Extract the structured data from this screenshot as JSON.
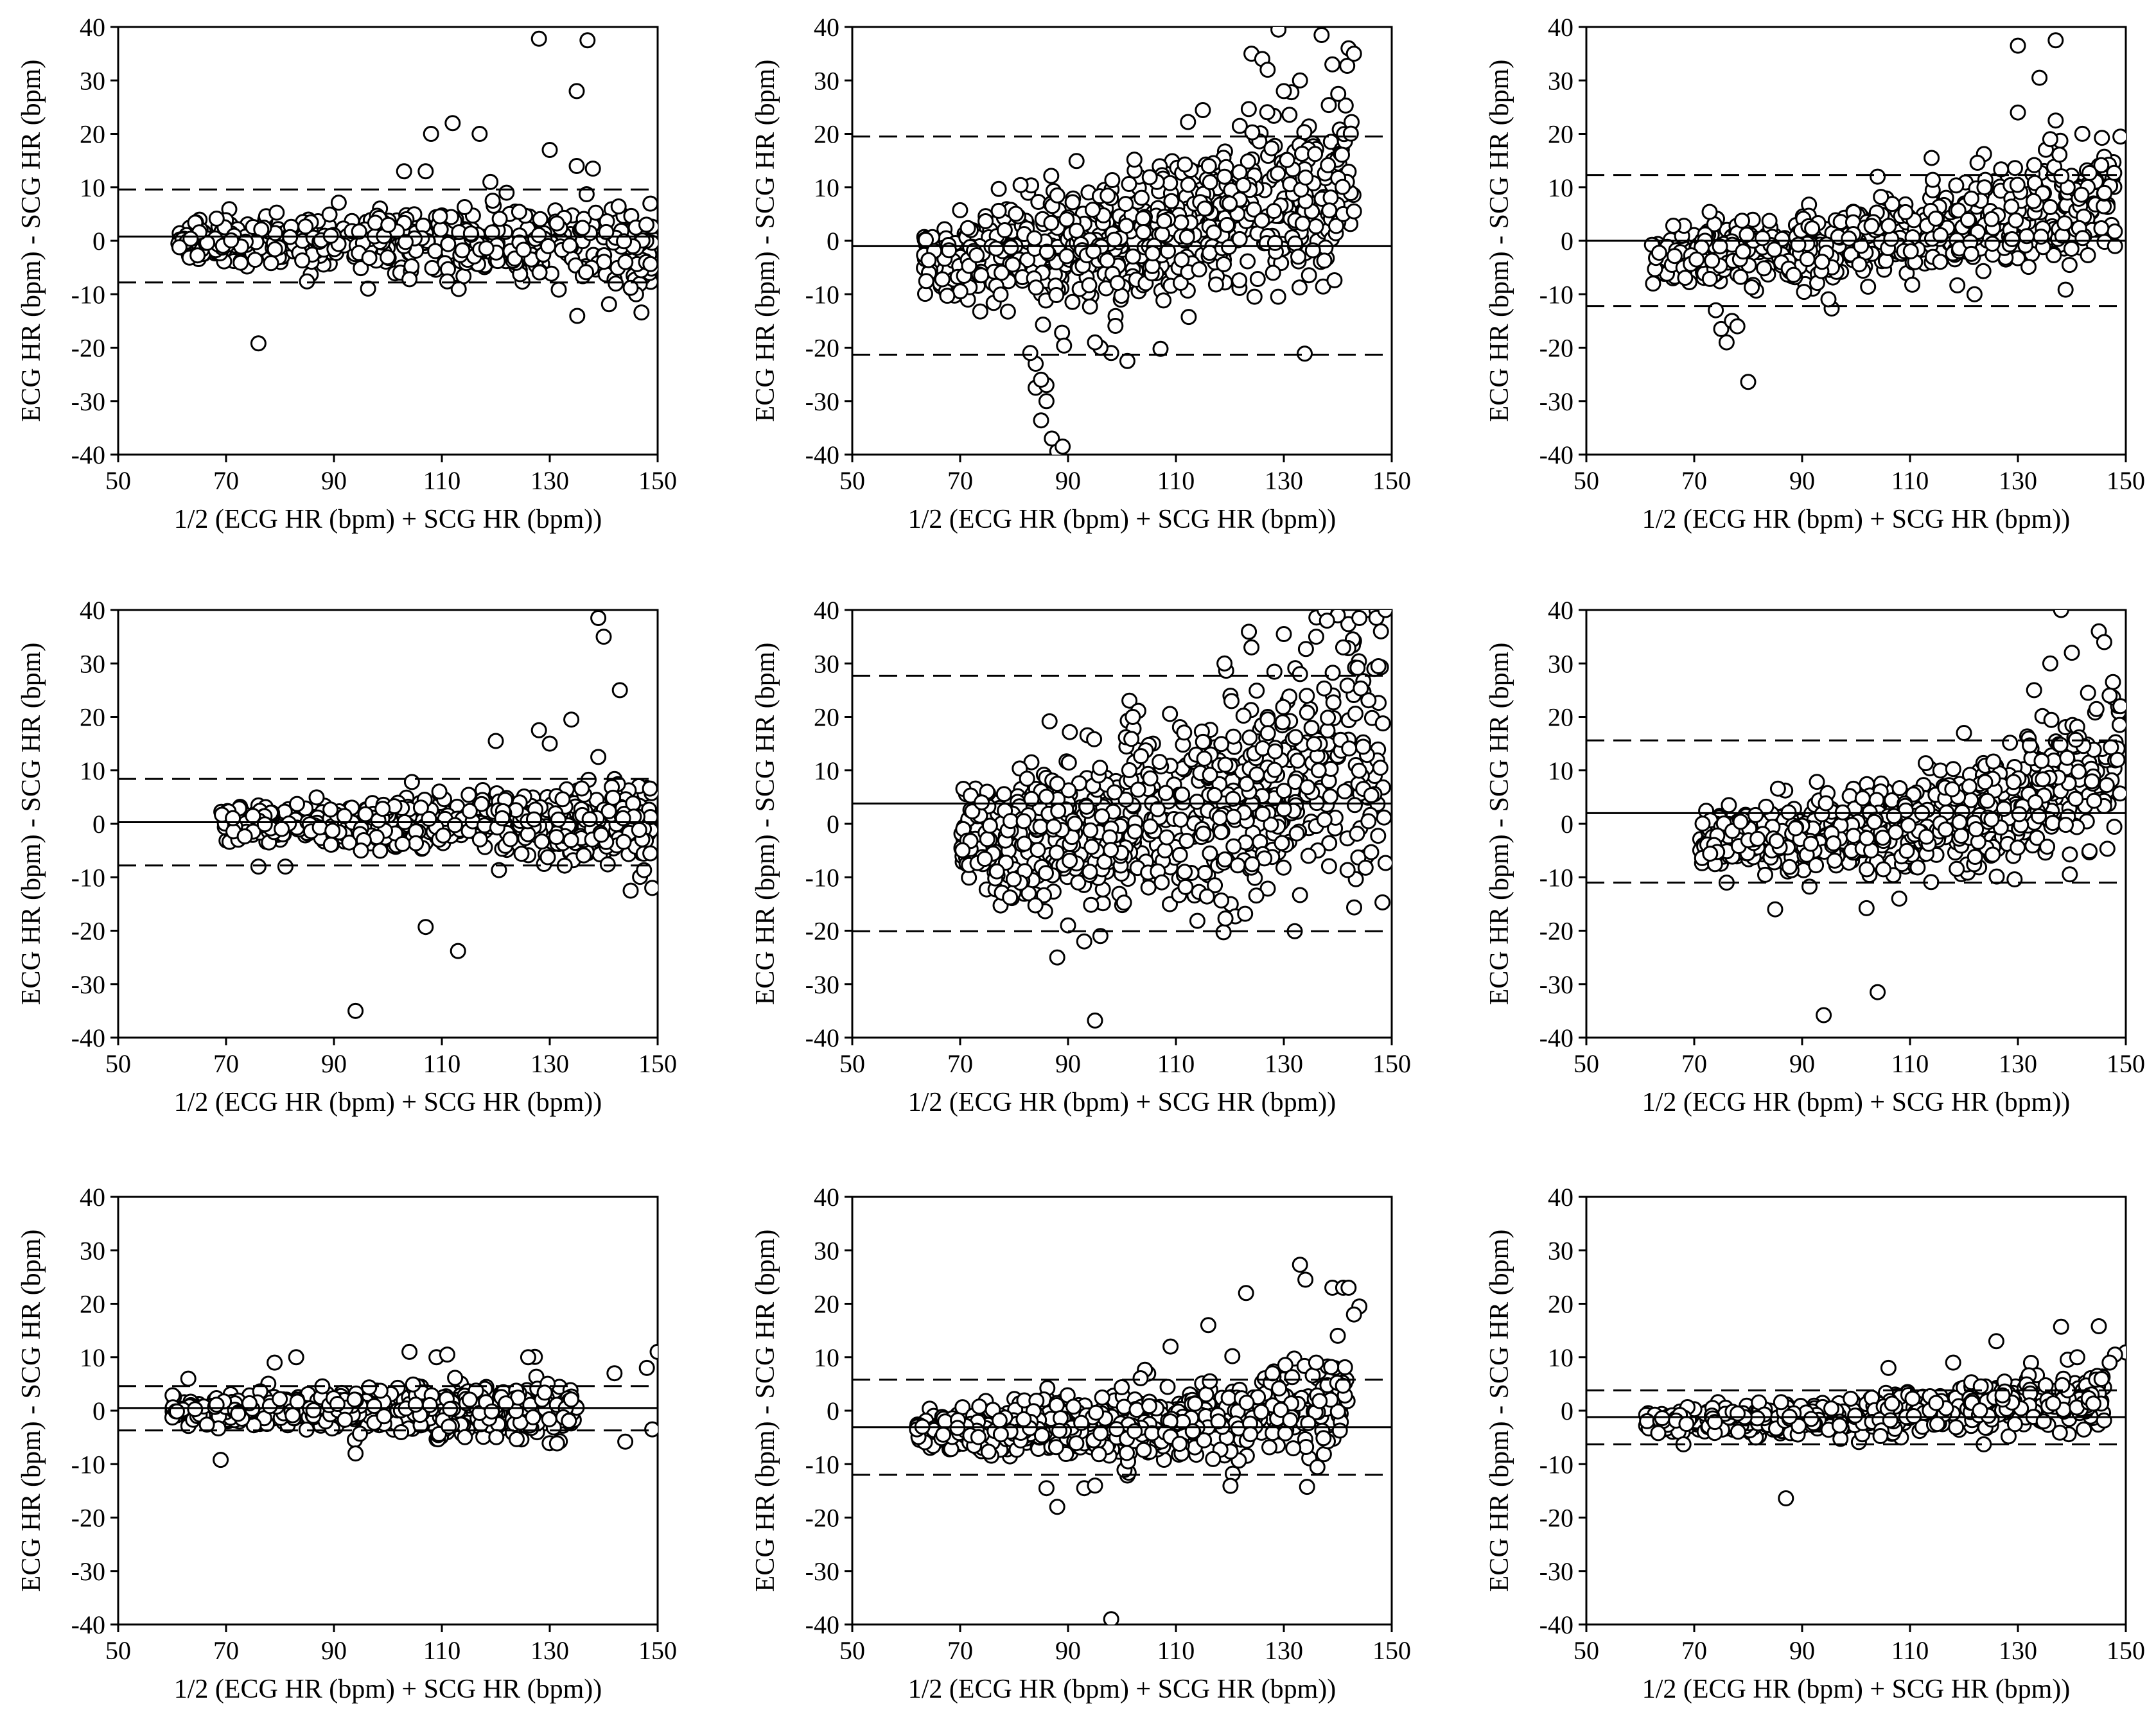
{
  "figure": {
    "columns": 3,
    "rows": 3
  },
  "colors": {
    "ink": "#000000",
    "marker_fill": "#ffffff",
    "background": "#ffffff"
  },
  "chart_data": [
    {
      "type": "scatter",
      "panel": "row1-col1",
      "xlabel": "1/2 (ECG HR (bpm) + SCG HR (bpm))",
      "ylabel": "ECG HR (bpm) - SCG HR (bpm)",
      "xlim": [
        50,
        150
      ],
      "ylim": [
        -40,
        40
      ],
      "xticks": [
        50,
        70,
        90,
        110,
        130,
        150
      ],
      "yticks": [
        -40,
        -30,
        -20,
        -10,
        0,
        10,
        20,
        30,
        40
      ],
      "grid": false,
      "legend": "none",
      "mean_line": 0.8,
      "upper_loa": 9.6,
      "lower_loa": -7.8,
      "cloud": {
        "n": 520,
        "x": [
          61,
          149
        ],
        "trend_start": 0,
        "trend_end": -1,
        "spread": 2.5
      },
      "points": [
        [
          76,
          -19.2
        ],
        [
          128,
          37.8
        ],
        [
          137,
          37.5
        ],
        [
          135,
          28
        ],
        [
          130,
          17
        ],
        [
          112,
          22
        ],
        [
          117,
          20
        ],
        [
          108,
          20
        ],
        [
          103,
          13
        ],
        [
          107,
          13
        ],
        [
          138,
          13.5
        ],
        [
          135,
          14
        ],
        [
          147,
          -13.4
        ],
        [
          146,
          -10
        ],
        [
          85,
          -7.6
        ],
        [
          111,
          -7.6
        ],
        [
          104,
          -7.2
        ],
        [
          145,
          -8.8
        ],
        [
          122,
          9
        ],
        [
          119,
          11
        ]
      ]
    },
    {
      "type": "scatter",
      "panel": "row1-col2",
      "xlabel": "1/2 (ECG HR (bpm) + SCG HR (bpm))",
      "ylabel": "ECG HR (bpm) - SCG HR (bpm)",
      "xlim": [
        50,
        150
      ],
      "ylim": [
        -40,
        40
      ],
      "xticks": [
        50,
        70,
        90,
        110,
        130,
        150
      ],
      "yticks": [
        -40,
        -30,
        -20,
        -10,
        0,
        10,
        20,
        30,
        40
      ],
      "grid": false,
      "legend": "none",
      "mean_line": -1.0,
      "upper_loa": 19.5,
      "lower_loa": -21.3,
      "cloud": {
        "n": 700,
        "x": [
          63,
          143
        ],
        "trend_start": -3,
        "trend_end": 12,
        "spread": 6
      },
      "points": [
        [
          88,
          -39.4
        ],
        [
          87,
          -37
        ],
        [
          89,
          -38.5
        ],
        [
          85,
          -33.6
        ],
        [
          86,
          -30
        ],
        [
          84,
          -27.5
        ],
        [
          86,
          -27
        ],
        [
          85,
          -26
        ],
        [
          84,
          -23
        ],
        [
          83,
          -21
        ],
        [
          129,
          39.5
        ],
        [
          137,
          38.5
        ],
        [
          142,
          36
        ],
        [
          143,
          35
        ],
        [
          124,
          35
        ],
        [
          126,
          34
        ],
        [
          139,
          33
        ],
        [
          127,
          32
        ],
        [
          133,
          30
        ],
        [
          130,
          28
        ],
        [
          141,
          5
        ],
        [
          143,
          5.5
        ],
        [
          128,
          -6
        ],
        [
          101,
          -22.5
        ],
        [
          98,
          -21
        ],
        [
          96,
          -20
        ],
        [
          95,
          -19
        ]
      ]
    },
    {
      "type": "scatter",
      "panel": "row1-col3",
      "xlabel": "1/2 (ECG HR (bpm) + SCG HR (bpm))",
      "ylabel": "ECG HR (bpm) - SCG HR (bpm)",
      "xlim": [
        50,
        150
      ],
      "ylim": [
        -40,
        40
      ],
      "xticks": [
        50,
        70,
        90,
        110,
        130,
        150
      ],
      "yticks": [
        -40,
        -30,
        -20,
        -10,
        0,
        10,
        20,
        30,
        40
      ],
      "grid": false,
      "legend": "none",
      "mean_line": 0.0,
      "upper_loa": 12.3,
      "lower_loa": -12.2,
      "cloud": {
        "n": 650,
        "x": [
          62,
          148
        ],
        "trend_start": -2.5,
        "trend_end": 9,
        "spread": 3.5
      },
      "points": [
        [
          80,
          -26.4
        ],
        [
          76,
          -19
        ],
        [
          75,
          -16.5
        ],
        [
          77,
          -15
        ],
        [
          74,
          -13
        ],
        [
          78,
          -16
        ],
        [
          130,
          36.5
        ],
        [
          137,
          37.5
        ],
        [
          134,
          30.5
        ],
        [
          130,
          24
        ],
        [
          137,
          22.5
        ],
        [
          136,
          19
        ],
        [
          149,
          19.5
        ],
        [
          114,
          15.5
        ],
        [
          104,
          12
        ],
        [
          148,
          -1
        ],
        [
          142,
          0.5
        ]
      ]
    },
    {
      "type": "scatter",
      "panel": "row2-col1",
      "xlabel": "1/2 (ECG HR (bpm) + SCG HR (bpm))",
      "ylabel": "ECG HR (bpm) - SCG HR (bpm)",
      "xlim": [
        50,
        150
      ],
      "ylim": [
        -40,
        40
      ],
      "xticks": [
        50,
        70,
        90,
        110,
        130,
        150
      ],
      "yticks": [
        -40,
        -30,
        -20,
        -10,
        0,
        10,
        20,
        30,
        40
      ],
      "grid": false,
      "legend": "none",
      "mean_line": 0.3,
      "upper_loa": 8.4,
      "lower_loa": -7.8,
      "cloud": {
        "n": 600,
        "x": [
          69,
          149
        ],
        "trend_start": 0,
        "trend_end": 0,
        "spread": 2.2
      },
      "points": [
        [
          94,
          -35
        ],
        [
          113,
          -23.8
        ],
        [
          107,
          -19.3
        ],
        [
          139,
          38.5
        ],
        [
          140,
          35
        ],
        [
          143,
          25
        ],
        [
          134,
          19.5
        ],
        [
          128,
          17.5
        ],
        [
          130,
          15
        ],
        [
          120,
          15.5
        ],
        [
          139,
          12.5
        ],
        [
          145,
          -12.5
        ],
        [
          149,
          -12
        ],
        [
          76,
          -8
        ],
        [
          81,
          -8
        ],
        [
          95,
          -5
        ]
      ]
    },
    {
      "type": "scatter",
      "panel": "row2-col2",
      "xlabel": "1/2 (ECG HR (bpm) + SCG HR (bpm))",
      "ylabel": "ECG HR (bpm) - SCG HR (bpm)",
      "xlim": [
        50,
        150
      ],
      "ylim": [
        -40,
        40
      ],
      "xticks": [
        50,
        70,
        90,
        110,
        130,
        150
      ],
      "yticks": [
        -40,
        -30,
        -20,
        -10,
        0,
        10,
        20,
        30,
        40
      ],
      "grid": false,
      "legend": "none",
      "mean_line": 3.8,
      "upper_loa": 27.7,
      "lower_loa": -20.1,
      "cloud": {
        "n": 750,
        "x": [
          70,
          149
        ],
        "trend_start": -3,
        "trend_end": 16,
        "spread": 8
      },
      "points": [
        [
          95,
          -36.8
        ],
        [
          88,
          -25
        ],
        [
          93,
          -22
        ],
        [
          96,
          -21
        ],
        [
          90,
          -19
        ],
        [
          140,
          39
        ],
        [
          144,
          38.5
        ],
        [
          138,
          38
        ],
        [
          148,
          36
        ],
        [
          136,
          35
        ],
        [
          130,
          35.5
        ],
        [
          141,
          33
        ],
        [
          124,
          33
        ],
        [
          119,
          30
        ],
        [
          133,
          28
        ],
        [
          102,
          20
        ],
        [
          88,
          7.5
        ],
        [
          75,
          6
        ],
        [
          74,
          4
        ]
      ]
    },
    {
      "type": "scatter",
      "panel": "row2-col3",
      "xlabel": "1/2 (ECG HR (bpm) + SCG HR (bpm))",
      "ylabel": "ECG HR (bpm) - SCG HR (bpm)",
      "xlim": [
        50,
        150
      ],
      "ylim": [
        -40,
        40
      ],
      "xticks": [
        50,
        70,
        90,
        110,
        130,
        150
      ],
      "yticks": [
        -40,
        -30,
        -20,
        -10,
        0,
        10,
        20,
        30,
        40
      ],
      "grid": false,
      "legend": "none",
      "mean_line": 2.0,
      "upper_loa": 15.6,
      "lower_loa": -11.0,
      "cloud": {
        "n": 700,
        "x": [
          71,
          149
        ],
        "trend_start": -3,
        "trend_end": 11,
        "spread": 4
      },
      "points": [
        [
          94,
          -35.8
        ],
        [
          104,
          -31.5
        ],
        [
          85,
          -16
        ],
        [
          108,
          -14
        ],
        [
          76,
          -11
        ],
        [
          138,
          40
        ],
        [
          145,
          36
        ],
        [
          146,
          34
        ],
        [
          140,
          32
        ],
        [
          136,
          30
        ],
        [
          133,
          25
        ],
        [
          143,
          24.5
        ],
        [
          147,
          24
        ],
        [
          149,
          22
        ],
        [
          120,
          17
        ]
      ]
    },
    {
      "type": "scatter",
      "panel": "row3-col1",
      "xlabel": "1/2 (ECG HR (bpm) + SCG HR (bpm))",
      "ylabel": "ECG HR (bpm) - SCG HR (bpm)",
      "xlim": [
        50,
        150
      ],
      "ylim": [
        -40,
        40
      ],
      "xticks": [
        50,
        70,
        90,
        110,
        130,
        150
      ],
      "yticks": [
        -40,
        -30,
        -20,
        -10,
        0,
        10,
        20,
        30,
        40
      ],
      "grid": false,
      "legend": "none",
      "mean_line": 0.5,
      "upper_loa": 4.6,
      "lower_loa": -3.7,
      "cloud": {
        "n": 600,
        "x": [
          60,
          135
        ],
        "trend_start": 0,
        "trend_end": 0,
        "spread": 1.6
      },
      "points": [
        [
          69,
          -9.2
        ],
        [
          94,
          -8
        ],
        [
          144,
          -5.8
        ],
        [
          149,
          -3.5
        ],
        [
          150,
          11
        ],
        [
          104,
          11
        ],
        [
          148,
          8
        ],
        [
          83,
          10
        ],
        [
          79,
          9
        ],
        [
          126,
          10
        ],
        [
          109,
          10
        ],
        [
          111,
          10.5
        ],
        [
          142,
          7
        ],
        [
          63,
          6
        ]
      ]
    },
    {
      "type": "scatter",
      "panel": "row3-col2",
      "xlabel": "1/2 (ECG HR (bpm) + SCG HR (bpm))",
      "ylabel": "ECG HR (bpm) - SCG HR (bpm)",
      "xlim": [
        50,
        150
      ],
      "ylim": [
        -40,
        40
      ],
      "xticks": [
        50,
        70,
        90,
        110,
        130,
        150
      ],
      "yticks": [
        -40,
        -30,
        -20,
        -10,
        0,
        10,
        20,
        30,
        40
      ],
      "grid": false,
      "legend": "none",
      "mean_line": -3.1,
      "upper_loa": 5.8,
      "lower_loa": -12.0,
      "cloud": {
        "n": 680,
        "x": [
          62,
          142
        ],
        "trend_start": -3.5,
        "trend_end": 1,
        "spread": 2.8
      },
      "points": [
        [
          98,
          -39
        ],
        [
          88,
          -18
        ],
        [
          86,
          -14.5
        ],
        [
          93,
          -14.5
        ],
        [
          95,
          -14
        ],
        [
          133,
          27.3
        ],
        [
          134,
          24.5
        ],
        [
          139,
          23
        ],
        [
          141,
          23
        ],
        [
          142,
          23
        ],
        [
          144,
          19.5
        ],
        [
          143,
          18
        ],
        [
          140,
          14
        ],
        [
          123,
          22
        ],
        [
          116,
          16
        ],
        [
          109,
          12
        ],
        [
          136,
          9
        ],
        [
          62,
          -3
        ],
        [
          62,
          -3.5
        ],
        [
          63,
          -3
        ]
      ]
    },
    {
      "type": "scatter",
      "panel": "row3-col3",
      "xlabel": "1/2 (ECG HR (bpm) + SCG HR (bpm))",
      "ylabel": "ECG HR (bpm) - SCG HR (bpm)",
      "xlim": [
        50,
        150
      ],
      "ylim": [
        -40,
        40
      ],
      "xticks": [
        50,
        70,
        90,
        110,
        130,
        150
      ],
      "yticks": [
        -40,
        -30,
        -20,
        -10,
        0,
        10,
        20,
        30,
        40
      ],
      "grid": false,
      "legend": "none",
      "mean_line": -1.2,
      "upper_loa": 3.8,
      "lower_loa": -6.3,
      "cloud": {
        "n": 650,
        "x": [
          61,
          146
        ],
        "trend_start": -2,
        "trend_end": 3,
        "spread": 1.6
      },
      "points": [
        [
          87,
          -16.4
        ],
        [
          68,
          -6.3
        ],
        [
          138,
          15.7
        ],
        [
          145,
          15.8
        ],
        [
          150,
          10.9
        ],
        [
          148,
          10.5
        ],
        [
          147,
          9
        ],
        [
          126,
          13
        ],
        [
          141,
          10
        ],
        [
          118,
          9
        ],
        [
          106,
          8
        ]
      ]
    }
  ]
}
